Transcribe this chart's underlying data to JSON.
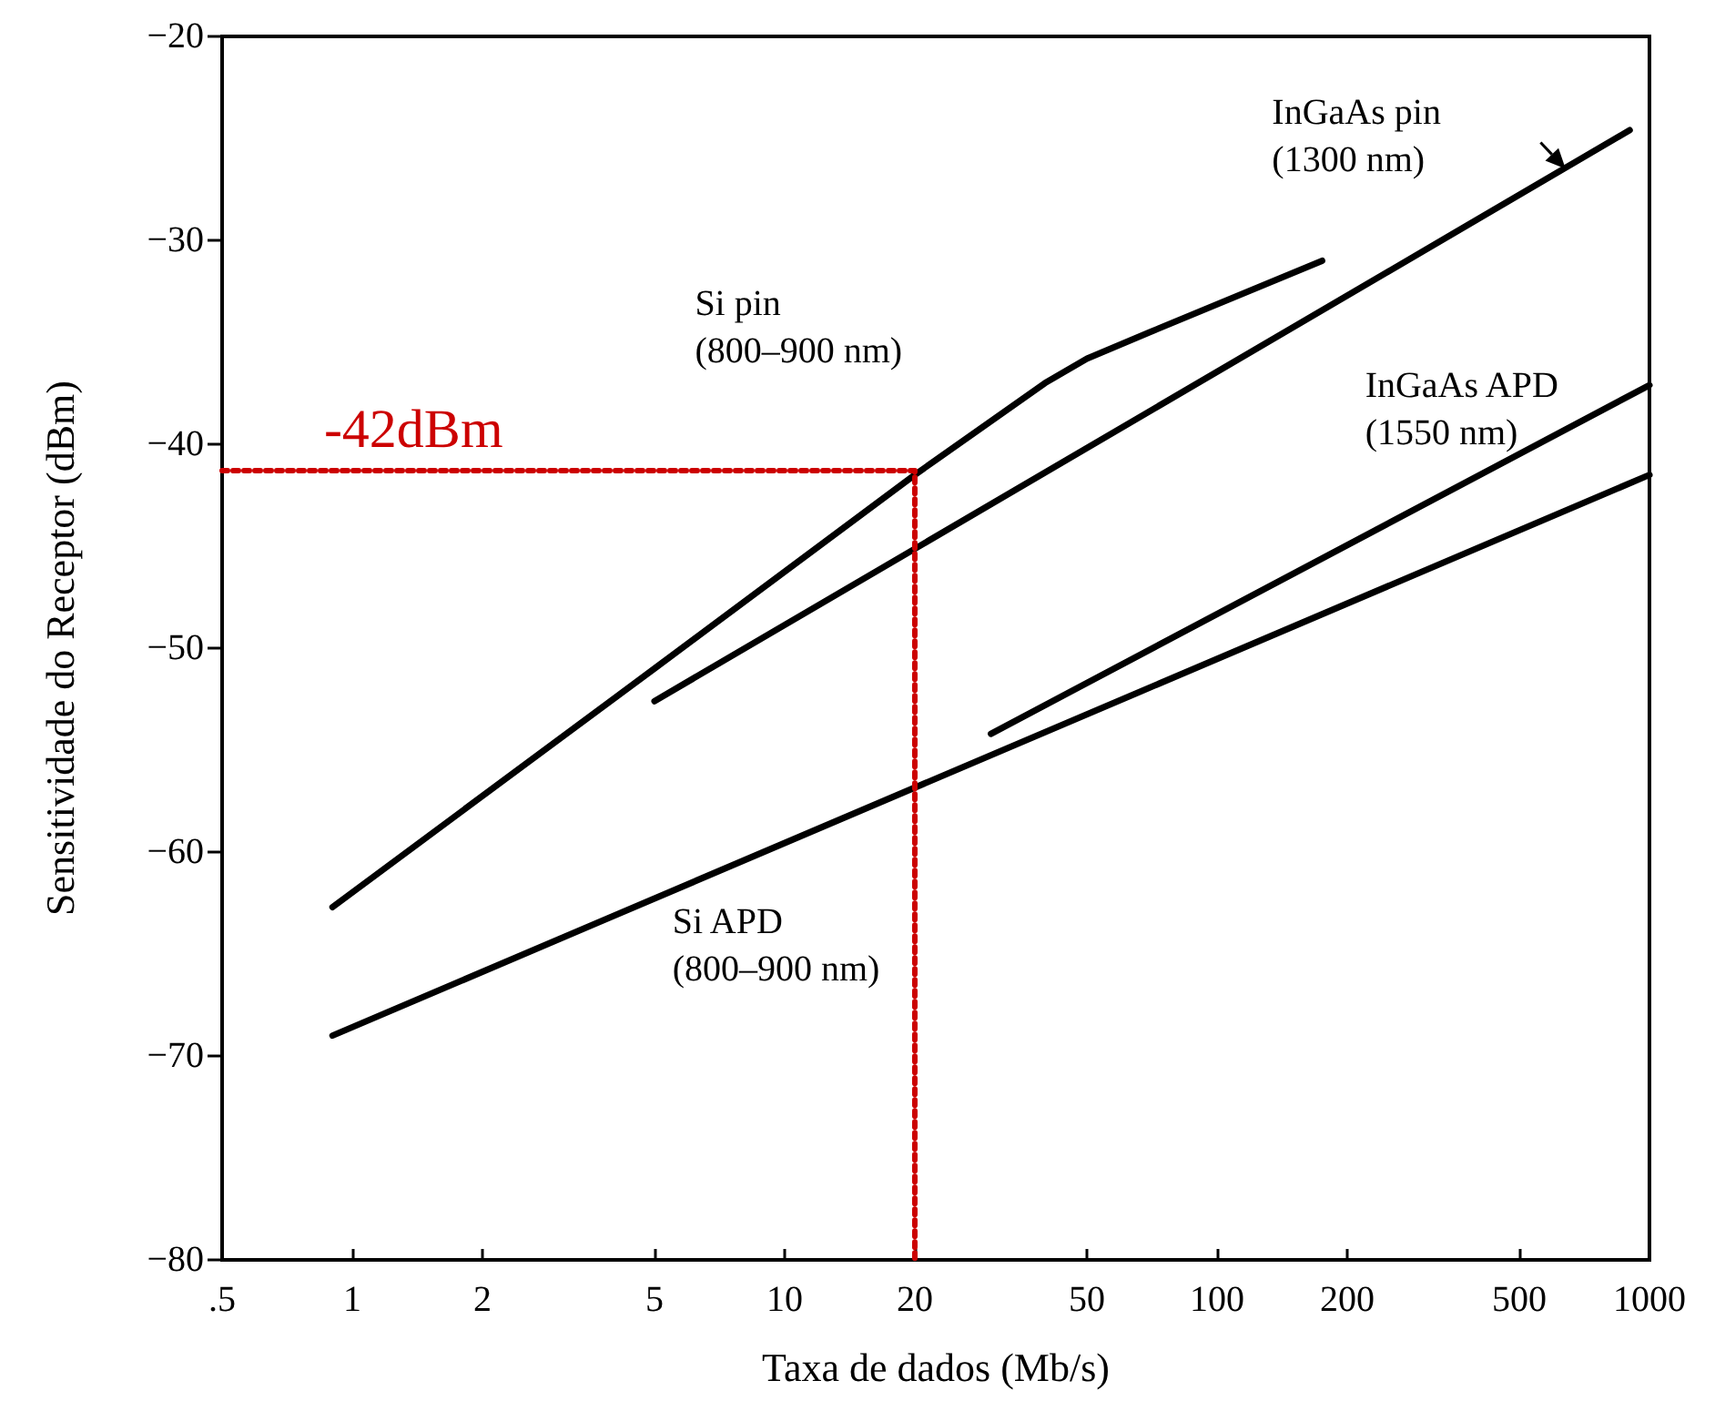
{
  "chart_data": {
    "type": "line",
    "xlabel": "Taxa de dados (Mb/s)",
    "ylabel": "Sensitividade do Receptor (dBm)",
    "log": "x",
    "grid": false,
    "legend": false,
    "marker": "none",
    "line_style": "solid",
    "xlim": [
      0.5,
      1000
    ],
    "ylim": [
      -80,
      -20
    ],
    "xticks": [
      {
        "value": 0.5,
        "label": ".5"
      },
      1,
      2,
      5,
      10,
      20,
      50,
      100,
      200,
      500,
      1000
    ],
    "yticks": [
      {
        "value": -80,
        "label": "−80"
      },
      {
        "value": -70,
        "label": "−70"
      },
      {
        "value": -60,
        "label": "−60"
      },
      {
        "value": -50,
        "label": "−50"
      },
      {
        "value": -40,
        "label": "−40"
      },
      {
        "value": -30,
        "label": "−30"
      },
      {
        "value": -20,
        "label": "−20"
      }
    ],
    "series": [
      {
        "name": "Si pin (800–900 nm)",
        "color": "#000000",
        "x": [
          0.9,
          5,
          20,
          40,
          50,
          70,
          175
        ],
        "values": [
          -62.7,
          -51,
          -41.5,
          -37,
          -35.8,
          -34.5,
          -31
        ]
      },
      {
        "name": "InGaAs pin (1300 nm)",
        "color": "#000000",
        "x": [
          5,
          900
        ],
        "values": [
          -52.6,
          -24.6
        ]
      },
      {
        "name": "InGaAs APD (1550 nm)",
        "color": "#000000",
        "x": [
          30,
          1000
        ],
        "values": [
          -54.2,
          -37.1
        ]
      },
      {
        "name": "Si APD (800–900 nm)",
        "color": "#000000",
        "x": [
          0.9,
          1000
        ],
        "values": [
          -69,
          -41.5
        ]
      },
      {
        "color": "#cc0000",
        "line_style": "dotted",
        "x": [
          0.5,
          20,
          20
        ],
        "values": [
          -41.3,
          -41.3,
          -80
        ]
      }
    ],
    "annotations": [
      "-42dBm"
    ]
  }
}
